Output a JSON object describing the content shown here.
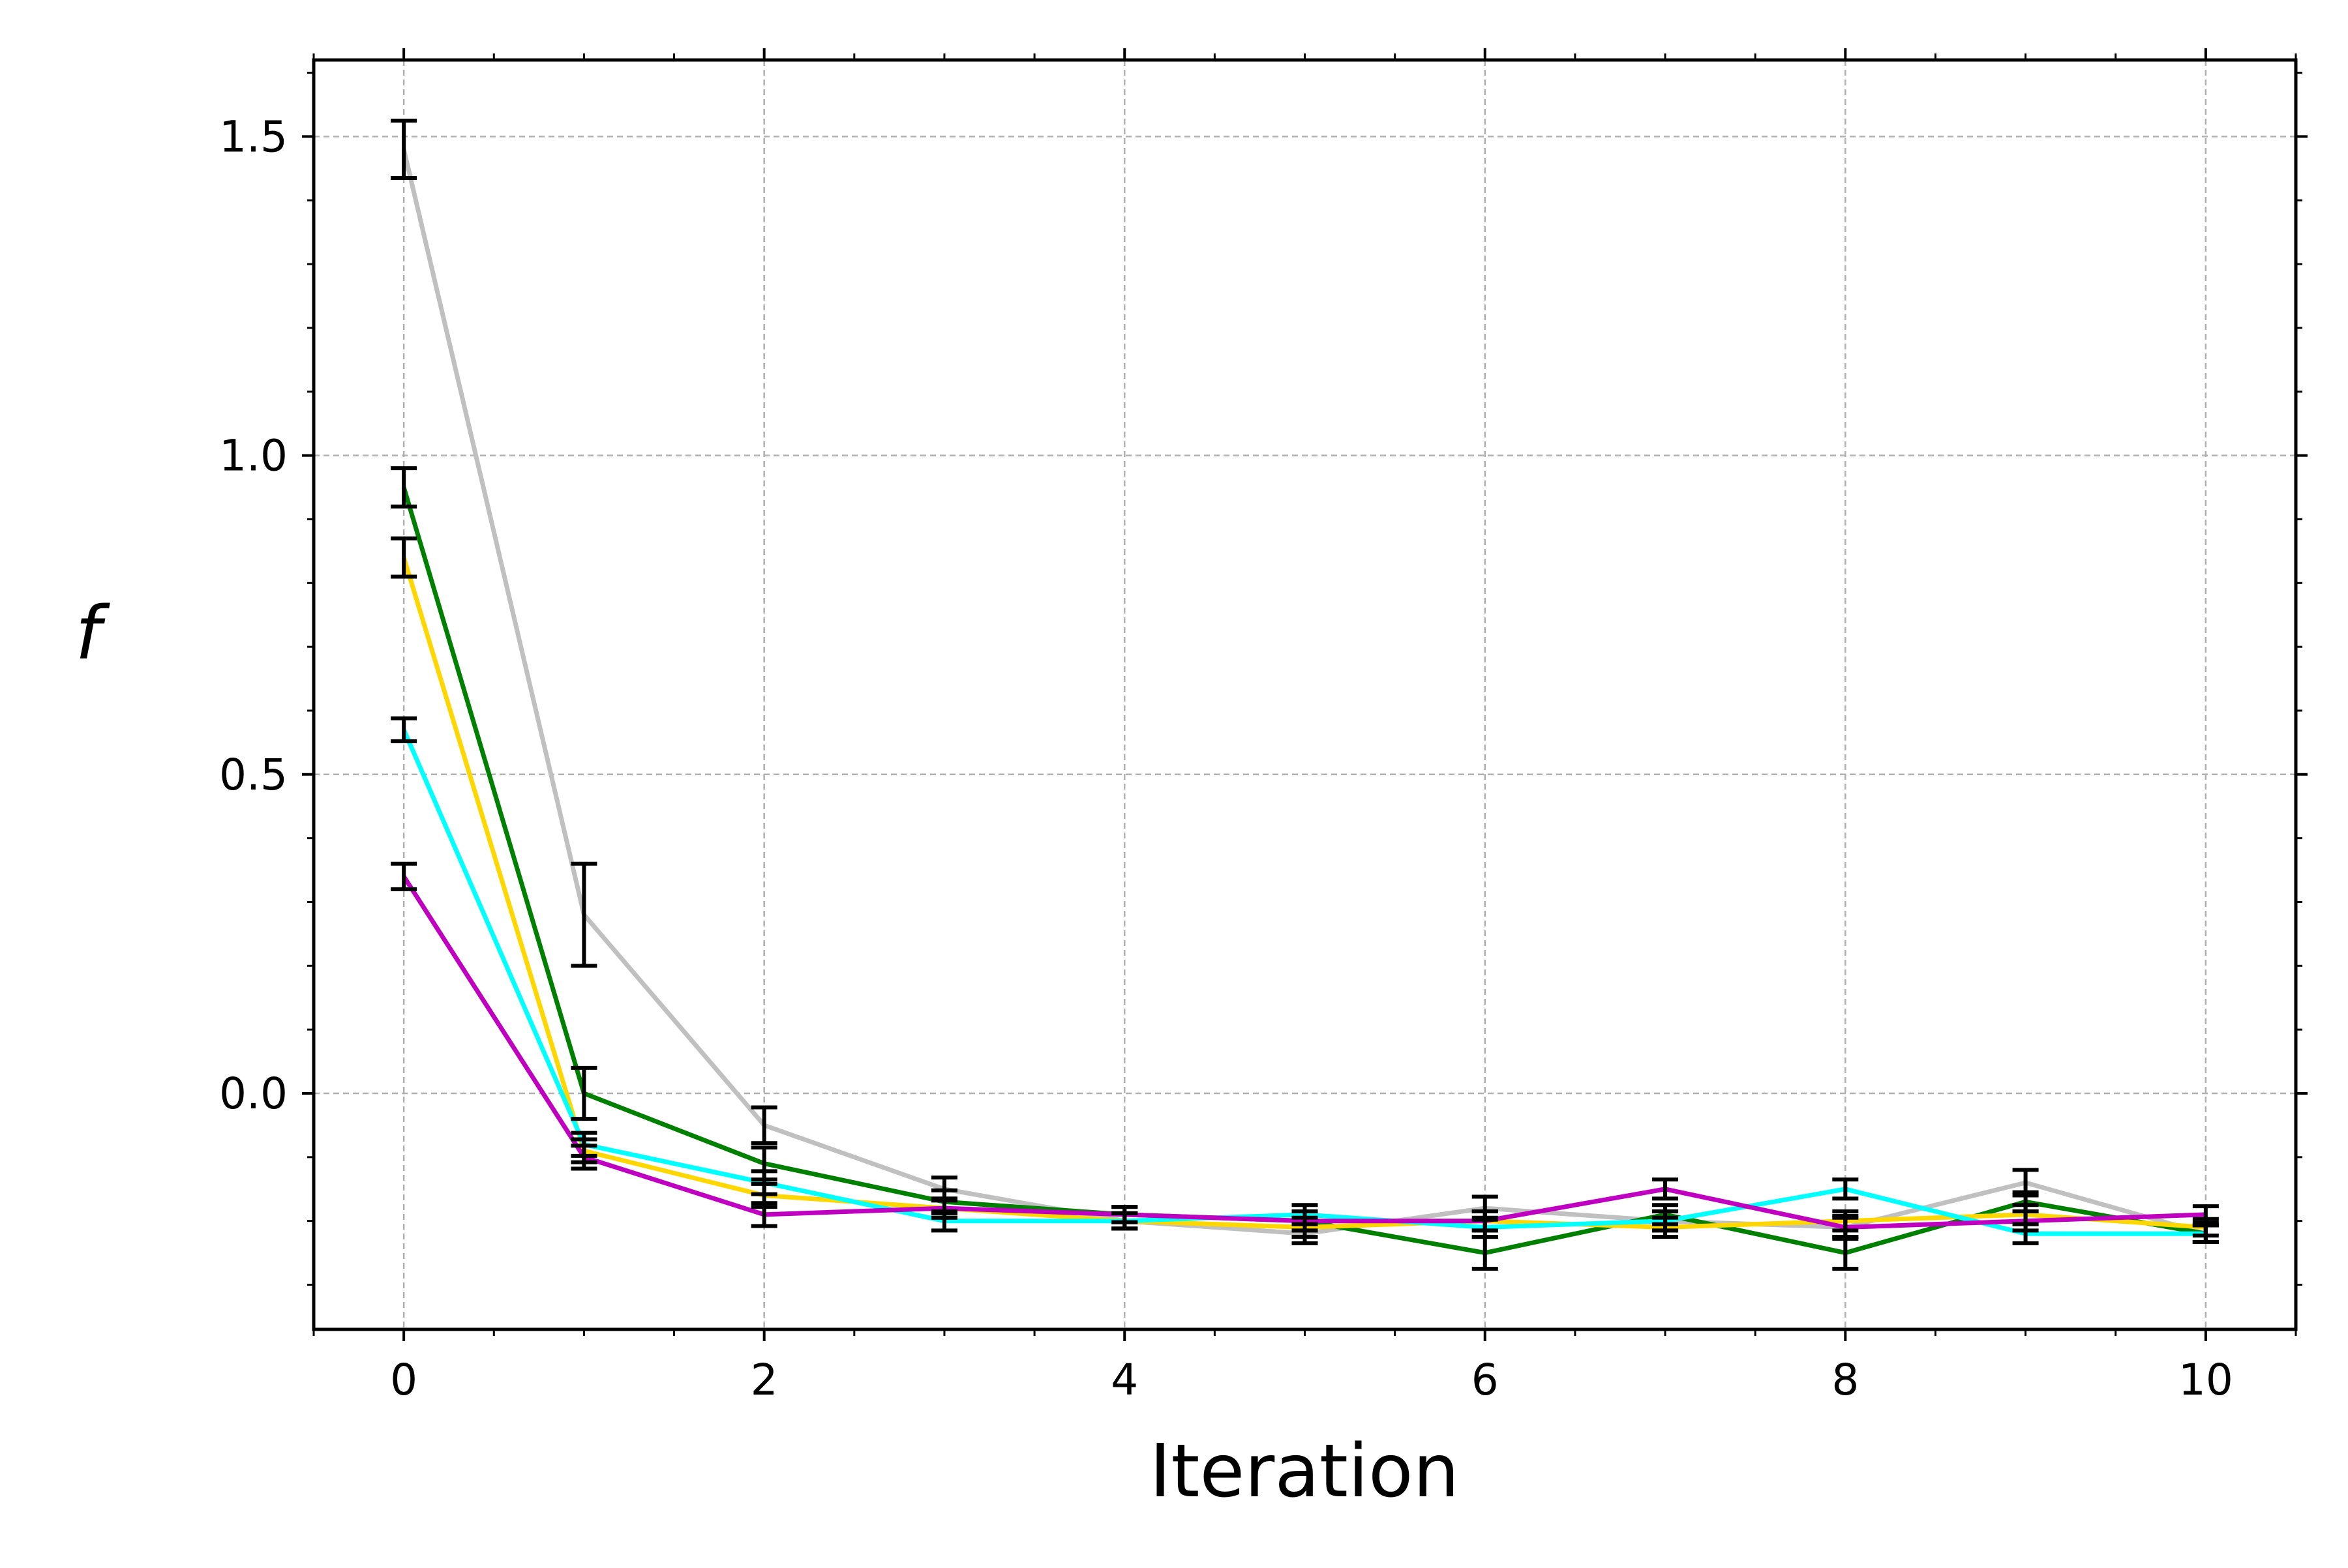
{
  "chart_data": {
    "type": "line",
    "title": "",
    "xlabel": "Iteration",
    "ylabel": "f",
    "xlim": [
      -0.5,
      10.5
    ],
    "ylim": [
      -0.37,
      1.62
    ],
    "grid": true,
    "legend": "none",
    "x_ticks": [
      0,
      2,
      4,
      6,
      8,
      10
    ],
    "x_tick_labels": [
      "0",
      "2",
      "4",
      "6",
      "8",
      "10"
    ],
    "y_ticks": [
      0.0,
      0.5,
      1.0,
      1.5
    ],
    "y_tick_labels": [
      "0.0",
      "0.5",
      "1.0",
      "1.5"
    ],
    "x": [
      0,
      1,
      2,
      3,
      4,
      5,
      6,
      7,
      8,
      9,
      10
    ],
    "error_bar_color": "#000000",
    "series": [
      {
        "name": "gray",
        "color": "#c0c0c0",
        "values": [
          1.48,
          0.28,
          -0.05,
          -0.15,
          -0.2,
          -0.22,
          -0.18,
          -0.2,
          -0.21,
          -0.14,
          -0.22
        ],
        "errors": [
          0.045,
          0.08,
          0.028,
          0.018,
          0.012,
          0.015,
          0.018,
          0.015,
          0.018,
          0.02,
          0.013
        ]
      },
      {
        "name": "green",
        "color": "#008000",
        "values": [
          0.95,
          0.0,
          -0.11,
          -0.17,
          -0.19,
          -0.2,
          -0.25,
          -0.19,
          -0.25,
          -0.17,
          -0.22
        ],
        "errors": [
          0.03,
          0.04,
          0.025,
          0.018,
          0.012,
          0.015,
          0.025,
          0.015,
          0.025,
          0.015,
          0.013
        ]
      },
      {
        "name": "yellow",
        "color": "#ffd700",
        "values": [
          0.84,
          -0.09,
          -0.16,
          -0.18,
          -0.2,
          -0.21,
          -0.2,
          -0.21,
          -0.2,
          -0.19,
          -0.21
        ],
        "errors": [
          0.03,
          0.018,
          0.018,
          0.015,
          0.012,
          0.015,
          0.015,
          0.015,
          0.015,
          0.015,
          0.013
        ]
      },
      {
        "name": "cyan",
        "color": "#00ffff",
        "values": [
          0.57,
          -0.08,
          -0.14,
          -0.2,
          -0.2,
          -0.19,
          -0.21,
          -0.2,
          -0.15,
          -0.22,
          -0.22
        ],
        "errors": [
          0.018,
          0.018,
          0.018,
          0.015,
          0.012,
          0.015,
          0.015,
          0.015,
          0.015,
          0.015,
          0.013
        ]
      },
      {
        "name": "magenta",
        "color": "#c000c0",
        "values": [
          0.34,
          -0.1,
          -0.19,
          -0.18,
          -0.19,
          -0.2,
          -0.2,
          -0.15,
          -0.21,
          -0.2,
          -0.19
        ],
        "errors": [
          0.02,
          0.018,
          0.018,
          0.015,
          0.012,
          0.015,
          0.015,
          0.015,
          0.015,
          0.015,
          0.013
        ]
      }
    ]
  }
}
